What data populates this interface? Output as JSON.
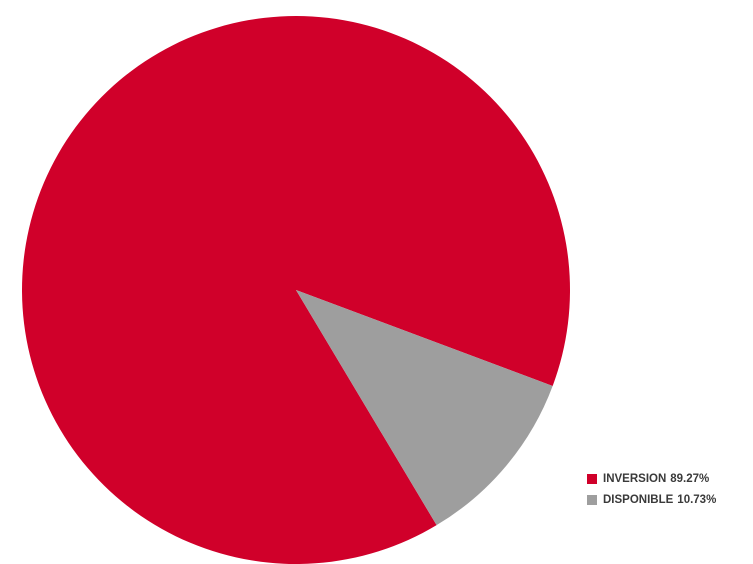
{
  "chart_data": {
    "type": "pie",
    "title": "",
    "categories": [
      "INVERSION",
      "DISPONIBLE"
    ],
    "values": [
      89.27,
      10.73
    ],
    "value_labels": [
      "89.27%",
      "10.73%"
    ],
    "colors": [
      "#d0002a",
      "#9e9e9e"
    ],
    "legend_position": "bottom-right",
    "legend": [
      {
        "label": "INVERSION",
        "value_text": "89.27%",
        "color": "#d0002a"
      },
      {
        "label": "DISPONIBLE",
        "value_text": "10.73%",
        "color": "#9e9e9e"
      }
    ]
  }
}
